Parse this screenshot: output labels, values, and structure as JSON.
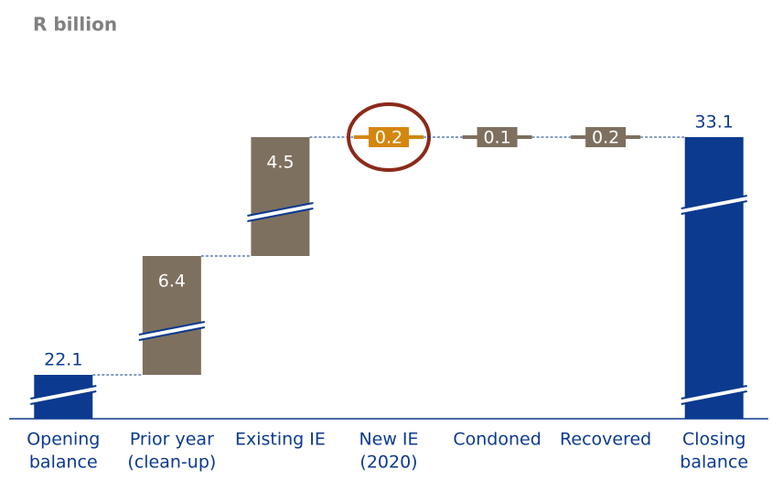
{
  "chart_data": {
    "type": "waterfall",
    "title": "R billion",
    "categories": [
      [
        "Opening",
        "balance"
      ],
      [
        "Prior year",
        "(clean-up)"
      ],
      [
        "Existing IE"
      ],
      [
        "New IE",
        "(2020)"
      ],
      [
        "Condoned"
      ],
      [
        "Recovered"
      ],
      [
        "Closing",
        "balance"
      ]
    ],
    "values": [
      22.1,
      6.4,
      4.5,
      0.2,
      0.1,
      0.2,
      33.1
    ],
    "colors": [
      "#0b3a8f",
      "#7e705f",
      "#7e705f",
      "#d4870e",
      "#7e705f",
      "#7e705f",
      "#0b3a8f"
    ],
    "highlight": 3
  }
}
